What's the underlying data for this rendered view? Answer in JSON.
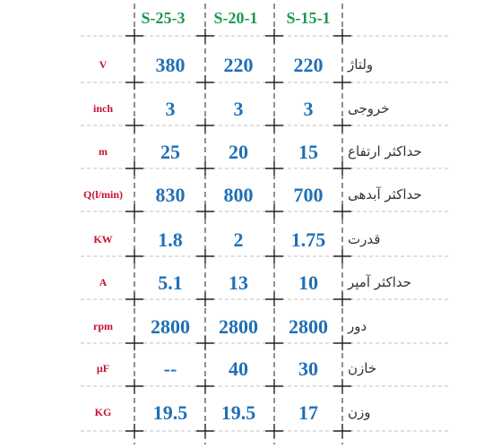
{
  "columns": [
    "S-25-3",
    "S-20-1",
    "S-15-1"
  ],
  "rows": [
    {
      "unit": "V",
      "values": [
        "380",
        "220",
        "220"
      ],
      "label": "ولتاژ"
    },
    {
      "unit": "inch",
      "values": [
        "3",
        "3",
        "3"
      ],
      "label": "خروجی"
    },
    {
      "unit": "m",
      "values": [
        "25",
        "20",
        "15"
      ],
      "label": "حداکثر ارتفاع"
    },
    {
      "unit": "Q(l/min)",
      "values": [
        "830",
        "800",
        "700"
      ],
      "label": "حداکثر آبدهی"
    },
    {
      "unit": "KW",
      "values": [
        "1.8",
        "2",
        "1.75"
      ],
      "label": "قدرت"
    },
    {
      "unit": "A",
      "values": [
        "5.1",
        "13",
        "10"
      ],
      "label": "حداکثر آمپر"
    },
    {
      "unit": "rpm",
      "values": [
        "2800",
        "2800",
        "2800"
      ],
      "label": "دور"
    },
    {
      "unit": "μF",
      "values": [
        "--",
        "40",
        "30"
      ],
      "label": "خازن"
    },
    {
      "unit": "KG",
      "values": [
        "19.5",
        "19.5",
        "17"
      ],
      "label": "وزن"
    }
  ],
  "colors": {
    "header": "#1a9a4a",
    "unit": "#c8102e",
    "value": "#1f6fb5",
    "label": "#333333",
    "line": "#222222",
    "dash": "#c0c0c0"
  }
}
